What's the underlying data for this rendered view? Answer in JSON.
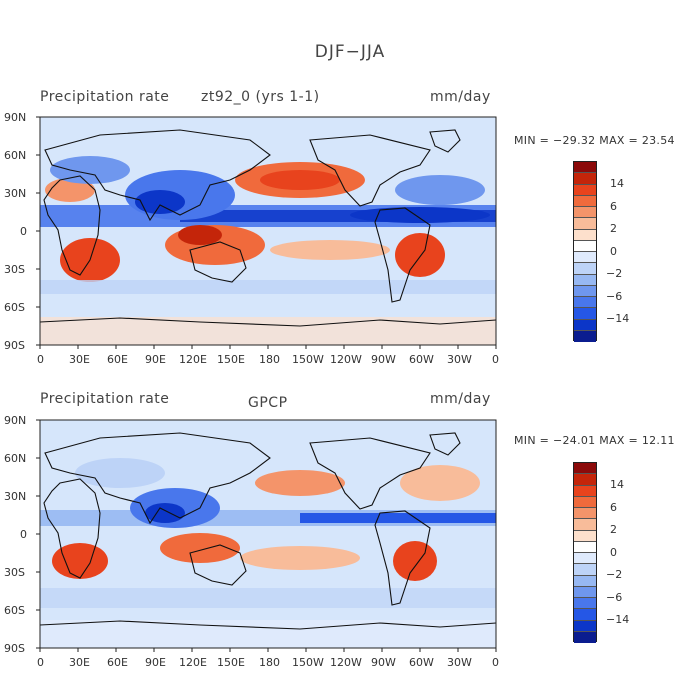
{
  "title": "DJF−JJA",
  "panels": [
    {
      "id": "top",
      "left_label": "Precipitation rate",
      "center_label": "zt92_0 (yrs 1-1)",
      "right_label": "mm/day",
      "min_value": "−29.32",
      "max_value": "23.54",
      "minmax_text": "MIN = −29.32 MAX =  23.54"
    },
    {
      "id": "bottom",
      "left_label": "Precipitation rate",
      "center_label": "GPCP",
      "right_label": "mm/day",
      "min_value": "−24.01",
      "max_value": "12.11",
      "minmax_text": "MIN = −24.01 MAX =  12.11"
    }
  ],
  "lon_ticks": [
    "0",
    "30E",
    "60E",
    "90E",
    "120E",
    "150E",
    "180",
    "150W",
    "120W",
    "90W",
    "60W",
    "30W",
    "0"
  ],
  "lat_ticks": [
    "90N",
    "60N",
    "30N",
    "0",
    "30S",
    "60S",
    "90S"
  ],
  "colorbar": {
    "labels": [
      "14",
      "6",
      "2",
      "0",
      "−2",
      "−6",
      "−14"
    ],
    "colors": [
      "#8b0a0a",
      "#c4250a",
      "#e8431d",
      "#f06a3c",
      "#f4946a",
      "#f8bc9a",
      "#fde0cc",
      "#ffffff",
      "#dfeafc",
      "#bdd3f7",
      "#97b8f2",
      "#6f97ee",
      "#4977ec",
      "#2557e6",
      "#0c36c8",
      "#0b1d8f"
    ]
  },
  "palette": {
    "ocean_base": "#d6e6fb",
    "land_base": "#fde6d5",
    "coast": "#111111"
  }
}
